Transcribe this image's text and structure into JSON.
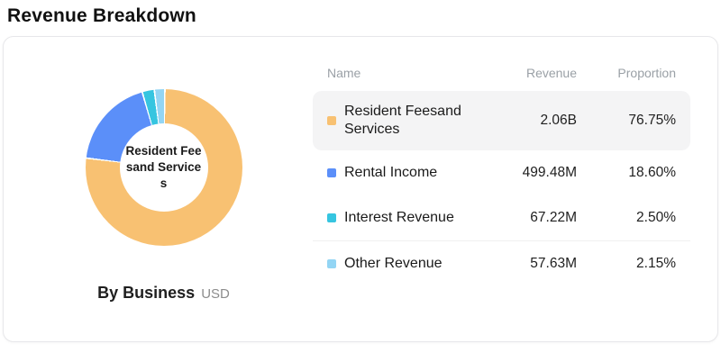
{
  "page": {
    "title": "Revenue Breakdown"
  },
  "chart": {
    "center_label": "Resident Feesand Services",
    "caption_title": "By Business",
    "caption_unit": "USD"
  },
  "table": {
    "headers": [
      "Name",
      "Revenue",
      "Proportion"
    ],
    "rows": [
      {
        "name": "Resident Feesand Services",
        "revenue": "2.06B",
        "proportion": "76.75%",
        "color": "#f8c172"
      },
      {
        "name": "Rental Income",
        "revenue": "499.48M",
        "proportion": "18.60%",
        "color": "#5b8ff9"
      },
      {
        "name": "Interest Revenue",
        "revenue": "67.22M",
        "proportion": "2.50%",
        "color": "#36c5e0"
      },
      {
        "name": "Other Revenue",
        "revenue": "57.63M",
        "proportion": "2.15%",
        "color": "#93d5f4"
      }
    ]
  },
  "chart_data": {
    "type": "pie",
    "title": "Revenue Breakdown",
    "subtitle": "By Business",
    "unit": "USD",
    "donut": true,
    "start_angle": "top",
    "direction": "clockwise",
    "legend_position": "right-table",
    "categories": [
      "Resident Feesand Services",
      "Rental Income",
      "Interest Revenue",
      "Other Revenue"
    ],
    "values": [
      2060000000,
      499480000,
      67220000,
      57630000
    ],
    "value_labels": [
      "2.06B",
      "499.48M",
      "67.22M",
      "57.63M"
    ],
    "proportions": [
      76.75,
      18.6,
      2.5,
      2.15
    ],
    "colors": [
      "#f8c172",
      "#5b8ff9",
      "#36c5e0",
      "#93d5f4"
    ],
    "center_label": "Resident Feesand Services"
  }
}
